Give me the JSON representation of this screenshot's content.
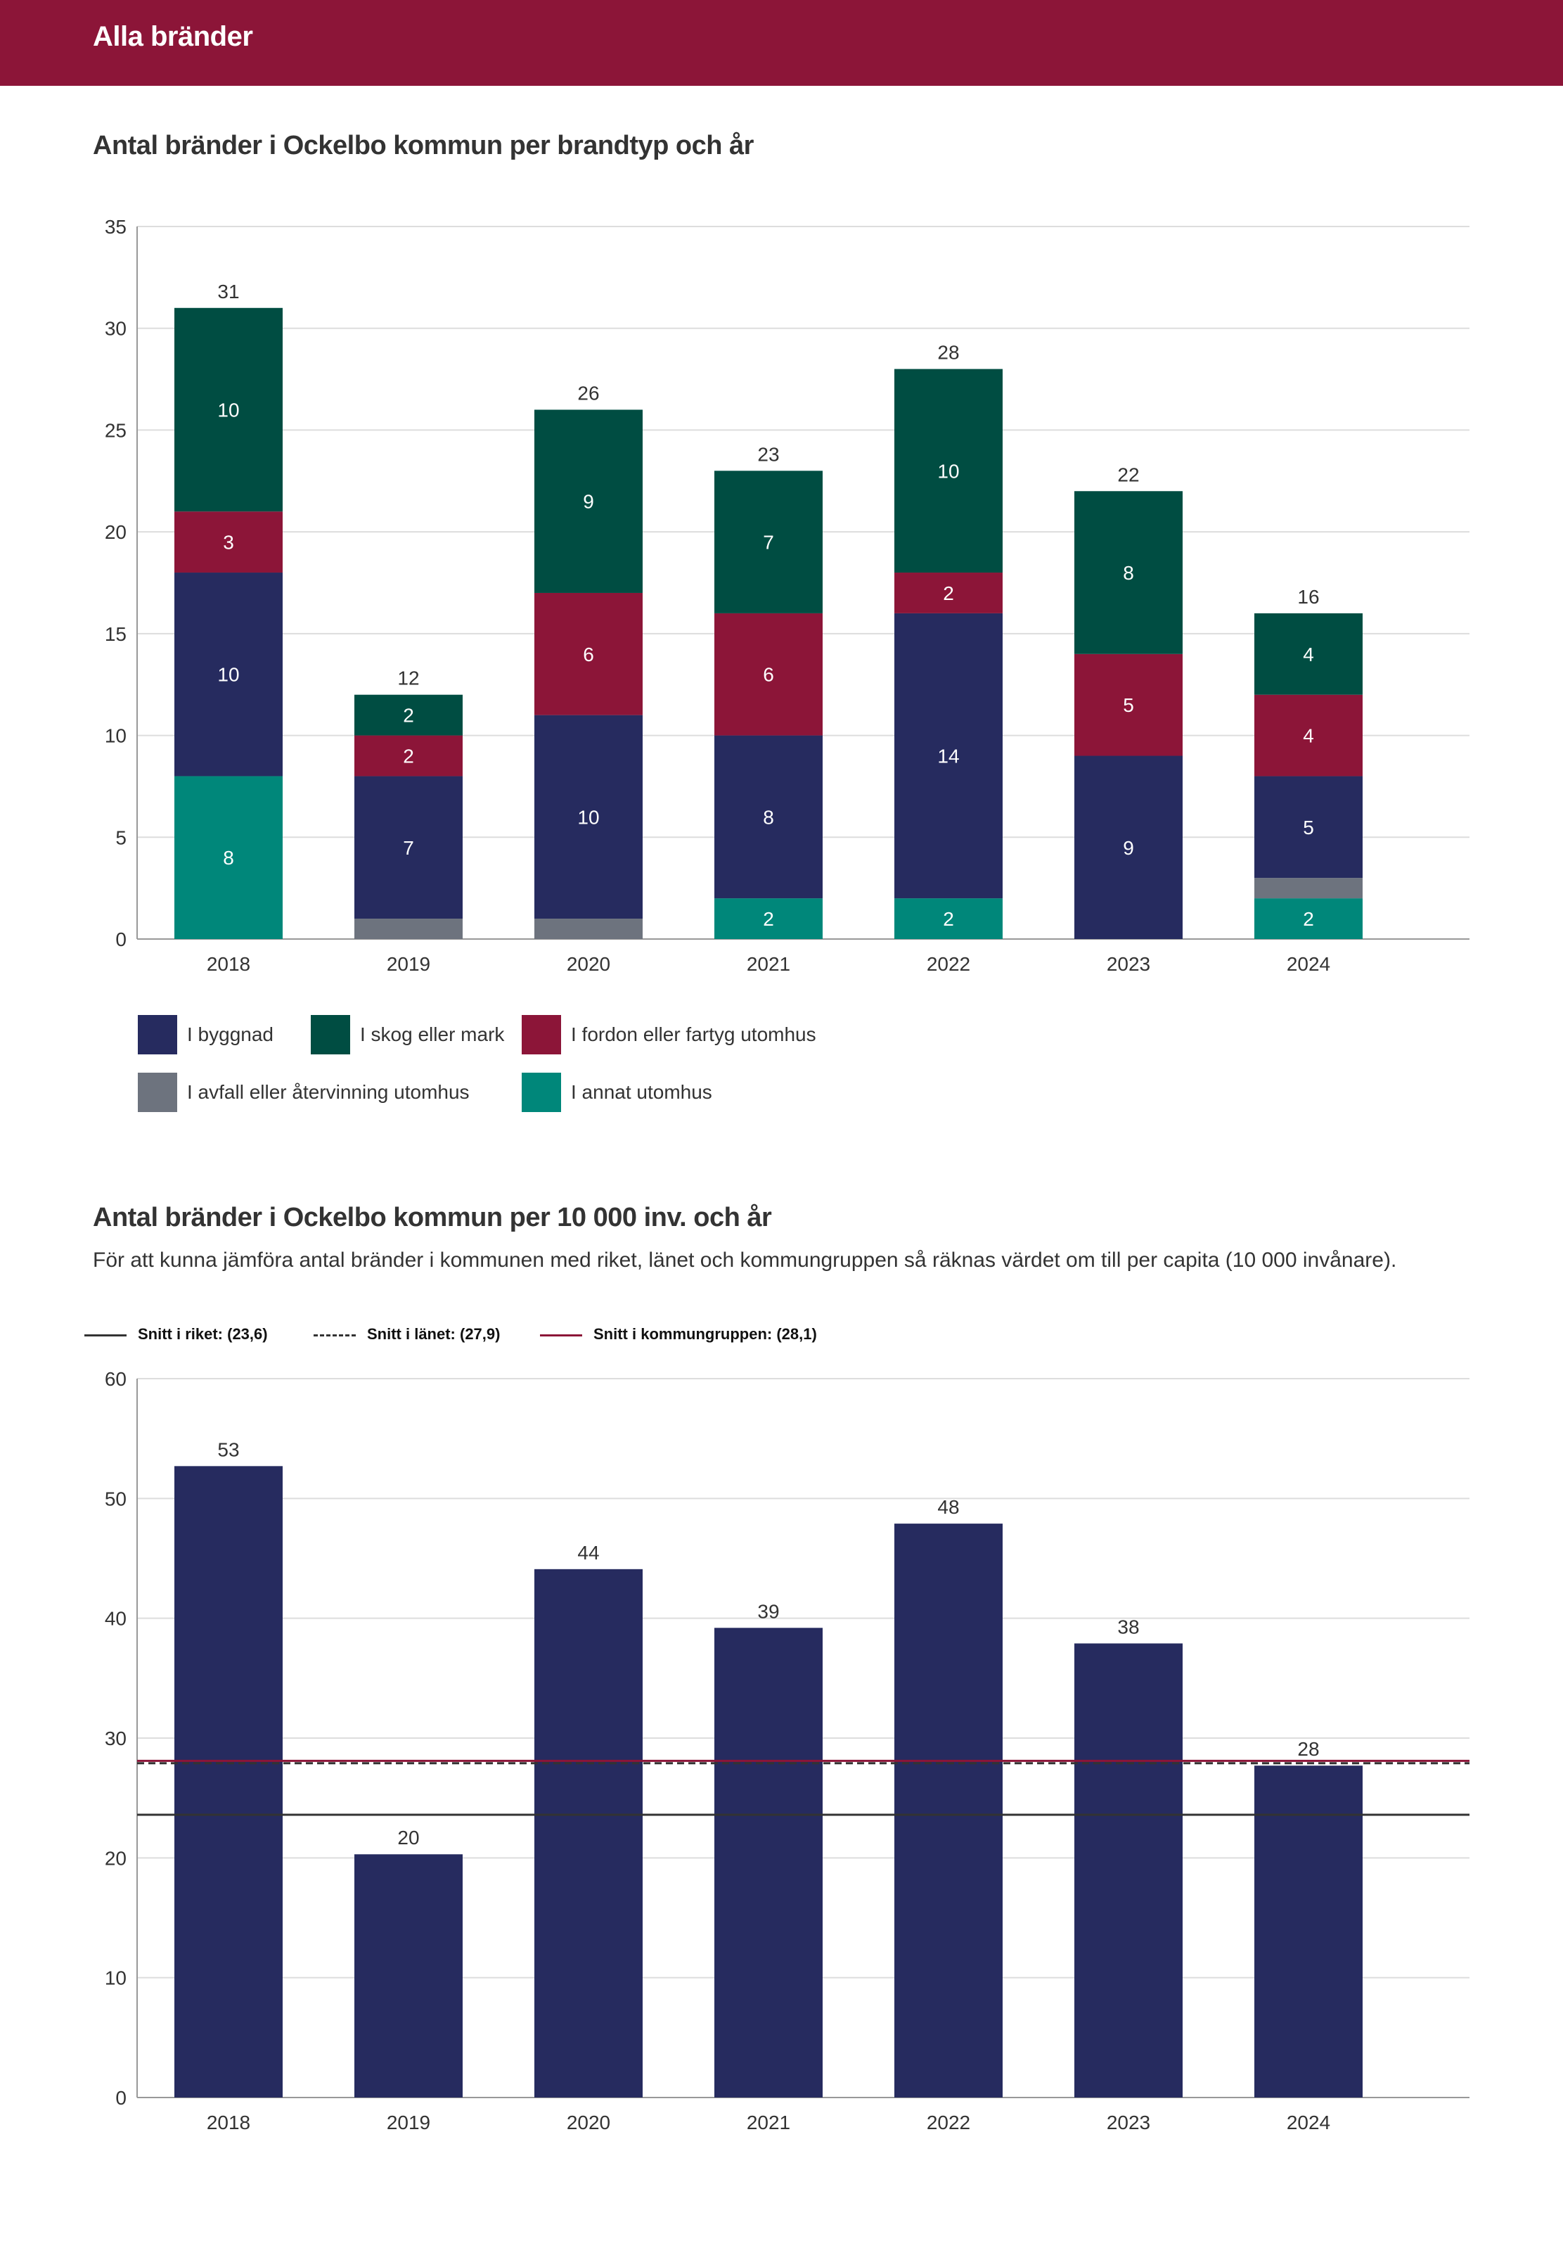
{
  "header": {
    "title": "Alla bränder"
  },
  "chart_data": [
    {
      "type": "bar",
      "stacked": true,
      "title": "Antal bränder i Ockelbo kommun per brandtyp och år",
      "categories": [
        "2018",
        "2019",
        "2020",
        "2021",
        "2022",
        "2023",
        "2024"
      ],
      "ylim": [
        0,
        35
      ],
      "yticks": [
        0,
        5,
        10,
        15,
        20,
        25,
        30,
        35
      ],
      "grid": true,
      "totals": [
        31,
        12,
        26,
        23,
        28,
        22,
        16
      ],
      "series": [
        {
          "name": "I annat utomhus",
          "color": "#00877a",
          "values": [
            8,
            0,
            0,
            2,
            2,
            0,
            2
          ]
        },
        {
          "name": "I avfall eller återvinning utomhus",
          "color": "#6d737e",
          "values": [
            0,
            1,
            1,
            0,
            0,
            0,
            1
          ]
        },
        {
          "name": "I byggnad",
          "color": "#262b5f",
          "values": [
            10,
            7,
            10,
            8,
            14,
            9,
            5
          ]
        },
        {
          "name": "I fordon eller fartyg utomhus",
          "color": "#8c1538",
          "values": [
            3,
            2,
            6,
            6,
            2,
            5,
            4
          ]
        },
        {
          "name": "I skog eller mark",
          "color": "#004d42",
          "values": [
            10,
            2,
            9,
            7,
            10,
            8,
            4
          ]
        }
      ],
      "legend_order": [
        "I byggnad",
        "I skog eller mark",
        "I fordon eller fartyg utomhus",
        "I avfall eller återvinning utomhus",
        "I annat utomhus"
      ],
      "legend_position": "bottom"
    },
    {
      "type": "bar",
      "title": "Antal bränder i Ockelbo kommun per 10 000 inv. och år",
      "subtitle": "För att kunna jämföra antal bränder i kommunen med riket, länet och kommungruppen så räknas värdet om till per capita (10 000 invånare).",
      "categories": [
        "2018",
        "2019",
        "2020",
        "2021",
        "2022",
        "2023",
        "2024"
      ],
      "values": [
        52.7,
        20.3,
        44.1,
        39.2,
        47.9,
        37.9,
        27.7
      ],
      "value_labels": [
        "53",
        "20",
        "44",
        "39",
        "48",
        "38",
        "28"
      ],
      "color": "#262b5f",
      "ylim": [
        0,
        60
      ],
      "yticks": [
        0,
        10,
        20,
        30,
        40,
        50,
        60
      ],
      "grid": true,
      "reference_lines": [
        {
          "label": "Snitt i riket: (23,6)",
          "value": 23.6,
          "color": "#333333",
          "style": "solid"
        },
        {
          "label": "Snitt i länet: (27,9)",
          "value": 27.9,
          "color": "#333333",
          "style": "dashed"
        },
        {
          "label": "Snitt i kommungruppen: (28,1)",
          "value": 28.1,
          "color": "#8c1538",
          "style": "solid"
        }
      ],
      "legend_position": "top-left"
    }
  ]
}
